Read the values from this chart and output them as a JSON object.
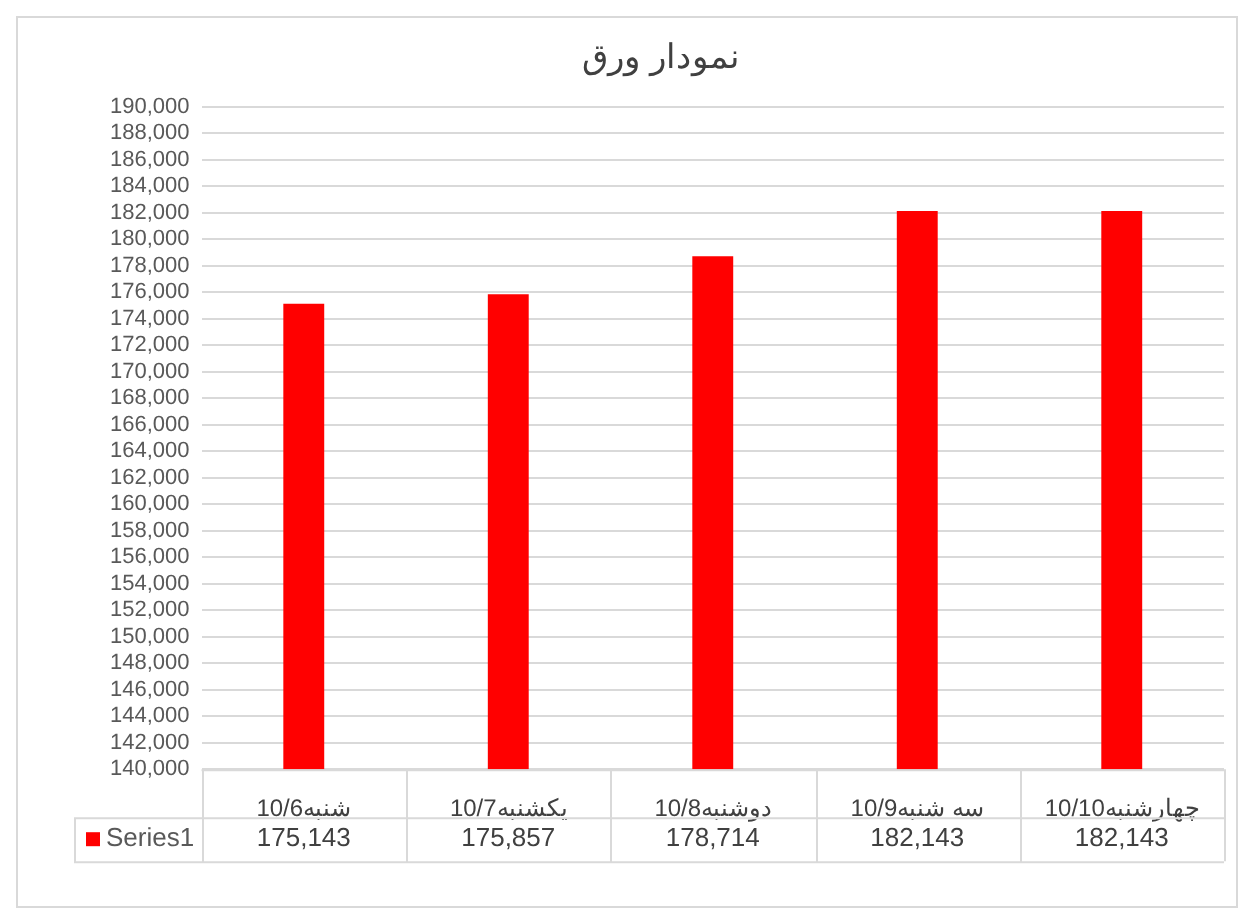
{
  "chart_data": {
    "type": "bar",
    "title": "نمودار ورق",
    "categories": [
      "شنبه10/6",
      "یکشنبه10/7",
      "دوشنبه10/8",
      "سه شنبه10/9",
      "چهارشنبه10/10"
    ],
    "series": [
      {
        "name": "Series1",
        "color": "#ff0000",
        "values": [
          175143,
          175857,
          178714,
          182143,
          182143
        ],
        "value_labels": [
          "175,143",
          "175,857",
          "178,714",
          "182,143",
          "182,143"
        ]
      }
    ],
    "ylim": [
      140000,
      190000
    ],
    "yticks": [
      {
        "value": 140000,
        "label": "140,000"
      },
      {
        "value": 142000,
        "label": "142,000"
      },
      {
        "value": 144000,
        "label": "144,000"
      },
      {
        "value": 146000,
        "label": "146,000"
      },
      {
        "value": 148000,
        "label": "148,000"
      },
      {
        "value": 150000,
        "label": "150,000"
      },
      {
        "value": 152000,
        "label": "152,000"
      },
      {
        "value": 154000,
        "label": "154,000"
      },
      {
        "value": 156000,
        "label": "156,000"
      },
      {
        "value": 158000,
        "label": "158,000"
      },
      {
        "value": 160000,
        "label": "160,000"
      },
      {
        "value": 162000,
        "label": "162,000"
      },
      {
        "value": 164000,
        "label": "164,000"
      },
      {
        "value": 166000,
        "label": "166,000"
      },
      {
        "value": 168000,
        "label": "168,000"
      },
      {
        "value": 170000,
        "label": "170,000"
      },
      {
        "value": 172000,
        "label": "172,000"
      },
      {
        "value": 174000,
        "label": "174,000"
      },
      {
        "value": 176000,
        "label": "176,000"
      },
      {
        "value": 178000,
        "label": "178,000"
      },
      {
        "value": 180000,
        "label": "180,000"
      },
      {
        "value": 182000,
        "label": "182,000"
      },
      {
        "value": 184000,
        "label": "184,000"
      },
      {
        "value": 186000,
        "label": "186,000"
      },
      {
        "value": 188000,
        "label": "188,000"
      },
      {
        "value": 190000,
        "label": "190,000"
      }
    ],
    "grid": "y",
    "legend": "bottom"
  }
}
